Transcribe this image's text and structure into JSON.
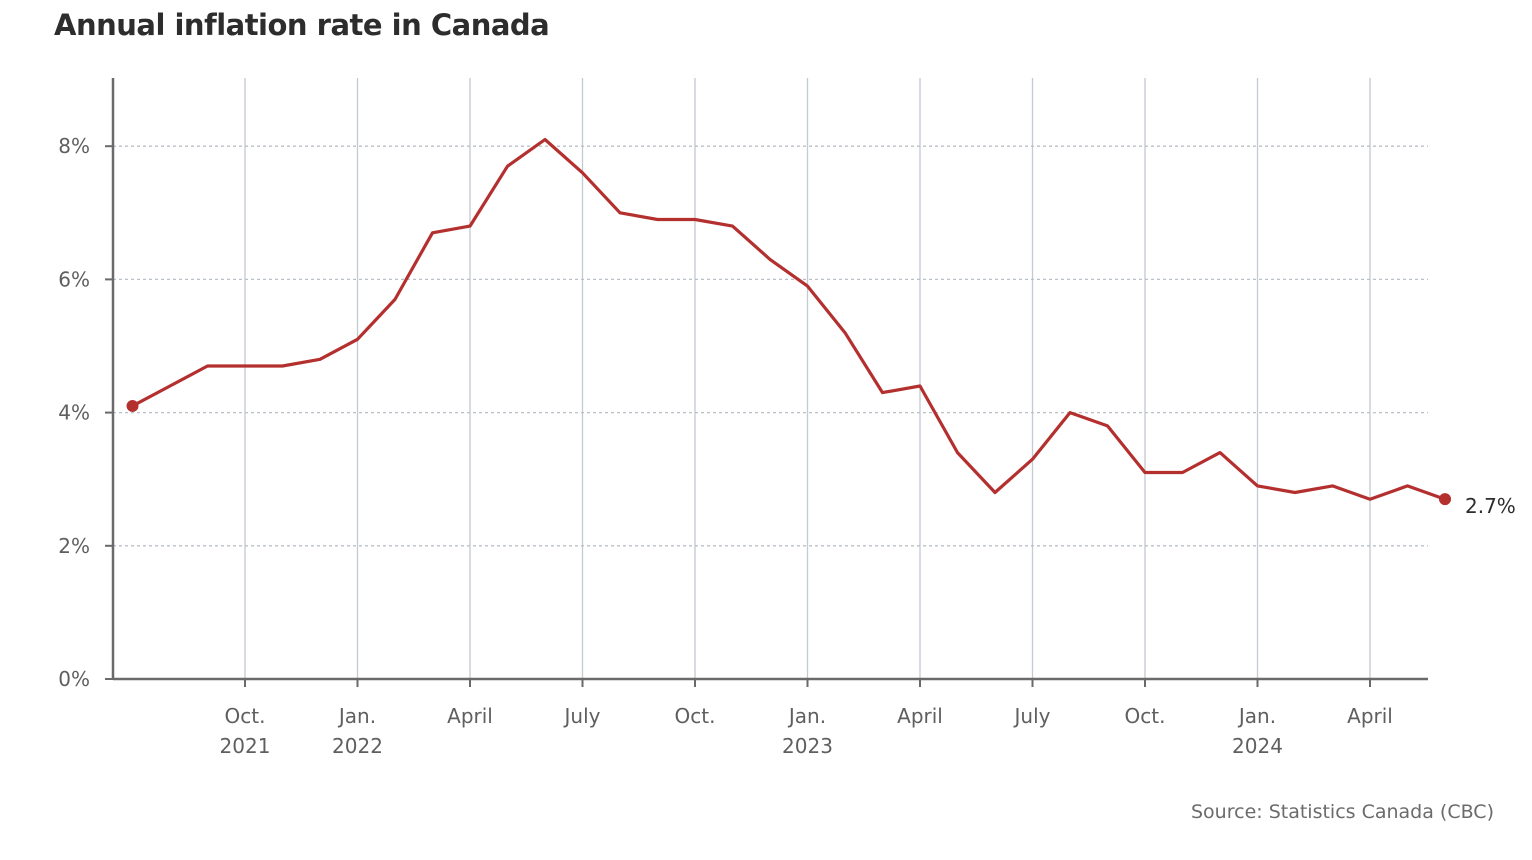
{
  "chart_data": {
    "type": "line",
    "title": "Annual inflation rate in Canada",
    "source": "Source: Statistics Canada (CBC)",
    "xlabel": "",
    "ylabel": "",
    "ylim": [
      0,
      8.9
    ],
    "y_ticks": [
      0,
      2,
      4,
      6,
      8
    ],
    "y_tick_labels": [
      "0%",
      "2%",
      "4%",
      "6%",
      "8%"
    ],
    "grid": {
      "horizontal": "dotted",
      "vertical": "solid"
    },
    "x_range": [
      "2021-07",
      "2024-06"
    ],
    "x_ticks": [
      {
        "date": "2021-10",
        "line1": "Oct.",
        "line2": "2021"
      },
      {
        "date": "2022-01",
        "line1": "Jan.",
        "line2": "2022"
      },
      {
        "date": "2022-04",
        "line1": "April",
        "line2": ""
      },
      {
        "date": "2022-07",
        "line1": "July",
        "line2": ""
      },
      {
        "date": "2022-10",
        "line1": "Oct.",
        "line2": ""
      },
      {
        "date": "2023-01",
        "line1": "Jan.",
        "line2": "2023"
      },
      {
        "date": "2023-04",
        "line1": "April",
        "line2": ""
      },
      {
        "date": "2023-07",
        "line1": "July",
        "line2": ""
      },
      {
        "date": "2023-10",
        "line1": "Oct.",
        "line2": ""
      },
      {
        "date": "2024-01",
        "line1": "Jan.",
        "line2": "2024"
      },
      {
        "date": "2024-04",
        "line1": "April",
        "line2": ""
      }
    ],
    "series": [
      {
        "color": "#b3302f",
        "end_label": "2.7%",
        "points": [
          {
            "x": "2021-07",
            "y": 4.1
          },
          {
            "x": "2021-08",
            "y": 4.4
          },
          {
            "x": "2021-09",
            "y": 4.7
          },
          {
            "x": "2021-10",
            "y": 4.7
          },
          {
            "x": "2021-11",
            "y": 4.7
          },
          {
            "x": "2021-12",
            "y": 4.8
          },
          {
            "x": "2022-01",
            "y": 5.1
          },
          {
            "x": "2022-02",
            "y": 5.7
          },
          {
            "x": "2022-03",
            "y": 6.7
          },
          {
            "x": "2022-04",
            "y": 6.8
          },
          {
            "x": "2022-05",
            "y": 7.7
          },
          {
            "x": "2022-06",
            "y": 8.1
          },
          {
            "x": "2022-07",
            "y": 7.6
          },
          {
            "x": "2022-08",
            "y": 7.0
          },
          {
            "x": "2022-09",
            "y": 6.9
          },
          {
            "x": "2022-10",
            "y": 6.9
          },
          {
            "x": "2022-11",
            "y": 6.8
          },
          {
            "x": "2022-12",
            "y": 6.3
          },
          {
            "x": "2023-01",
            "y": 5.9
          },
          {
            "x": "2023-02",
            "y": 5.2
          },
          {
            "x": "2023-03",
            "y": 4.3
          },
          {
            "x": "2023-04",
            "y": 4.4
          },
          {
            "x": "2023-05",
            "y": 3.4
          },
          {
            "x": "2023-06",
            "y": 2.8
          },
          {
            "x": "2023-07",
            "y": 3.3
          },
          {
            "x": "2023-08",
            "y": 4.0
          },
          {
            "x": "2023-09",
            "y": 3.8
          },
          {
            "x": "2023-10",
            "y": 3.1
          },
          {
            "x": "2023-11",
            "y": 3.1
          },
          {
            "x": "2023-12",
            "y": 3.4
          },
          {
            "x": "2024-01",
            "y": 2.9
          },
          {
            "x": "2024-02",
            "y": 2.8
          },
          {
            "x": "2024-03",
            "y": 2.9
          },
          {
            "x": "2024-04",
            "y": 2.7
          },
          {
            "x": "2024-05",
            "y": 2.9
          },
          {
            "x": "2024-06",
            "y": 2.7
          }
        ]
      }
    ],
    "colors": {
      "line": "#b3302f",
      "axis": "#6a6a6a",
      "grid_vertical": "#c2cad2",
      "grid_horizontal": "#b9c0c7"
    }
  }
}
